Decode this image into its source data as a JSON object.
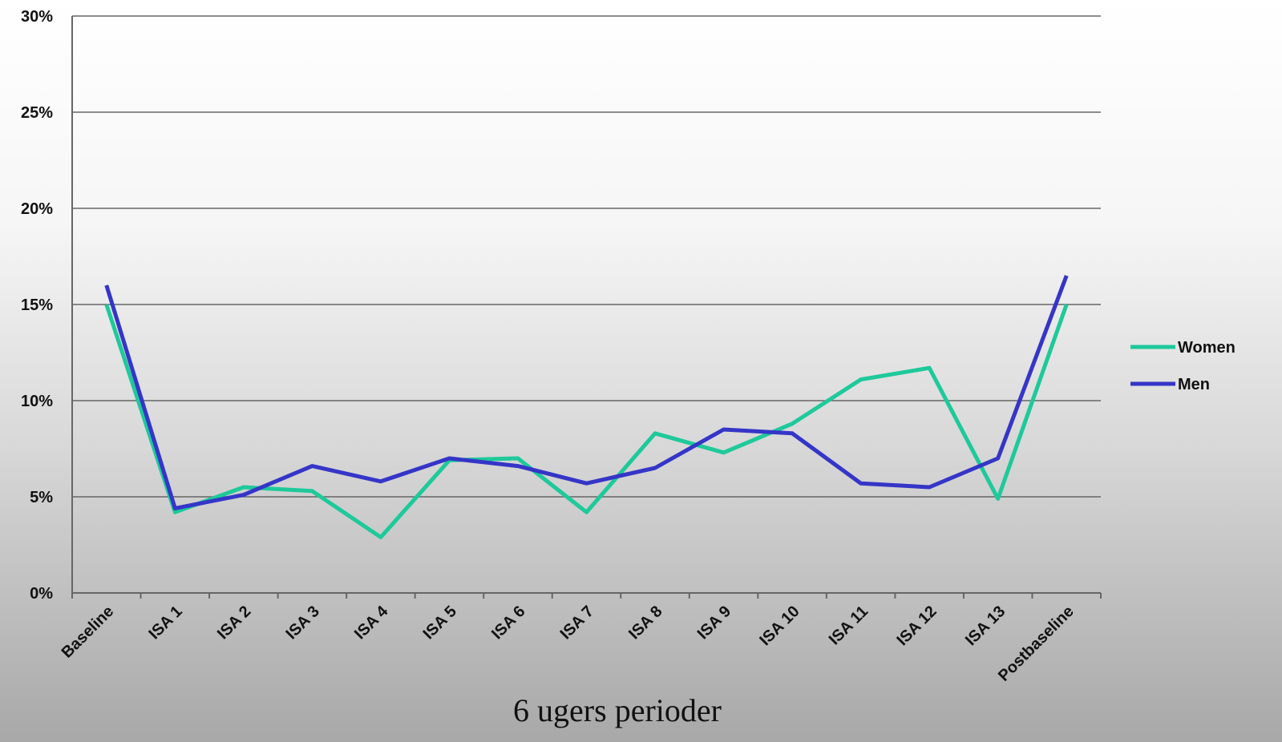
{
  "chart_data": {
    "type": "line",
    "x_label": "6 ugers perioder",
    "categories": [
      "Baseline",
      "ISA 1",
      "ISA 2",
      "ISA 3",
      "ISA 4",
      "ISA 5",
      "ISA 6",
      "ISA 7",
      "ISA 8",
      "ISA 9",
      "ISA 10",
      "ISA 11",
      "ISA 12",
      "ISA 13",
      "Postbaseline"
    ],
    "series": [
      {
        "name": "Women",
        "color": "#1ec99a",
        "values": [
          15,
          4.2,
          5.5,
          5.3,
          2.9,
          6.9,
          7.0,
          4.2,
          8.3,
          7.3,
          8.8,
          11.1,
          11.7,
          4.9,
          15
        ]
      },
      {
        "name": "Men",
        "color": "#3535c8",
        "values": [
          16,
          4.4,
          5.1,
          6.6,
          5.8,
          7.0,
          6.6,
          5.7,
          6.5,
          8.5,
          8.3,
          5.7,
          5.5,
          7.0,
          16.5
        ]
      }
    ],
    "ylim": [
      0,
      30
    ],
    "yticks": [
      {
        "value": 0,
        "label": "0%"
      },
      {
        "value": 5,
        "label": "5%"
      },
      {
        "value": 10,
        "label": "10%"
      },
      {
        "value": 15,
        "label": "15%"
      },
      {
        "value": 20,
        "label": "20%"
      },
      {
        "value": 25,
        "label": "25%"
      },
      {
        "value": 30,
        "label": "30%"
      }
    ],
    "grid": true,
    "legend": "right"
  }
}
